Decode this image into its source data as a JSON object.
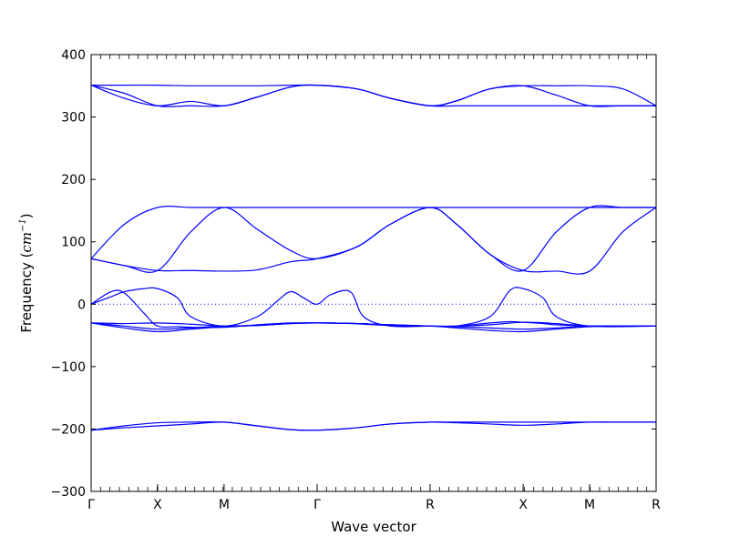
{
  "chart_data": {
    "type": "line",
    "title": "",
    "xlabel": "Wave vector",
    "ylabel": {
      "prefix": "Frequency (",
      "unit_base": "cm",
      "unit_exp": "−1",
      "suffix": ")"
    },
    "ylim": [
      -300,
      400
    ],
    "yticks": [
      -300,
      -200,
      -100,
      0,
      100,
      200,
      300,
      400
    ],
    "ytick_labels": [
      "−300",
      "−200",
      "−100",
      "0",
      "100",
      "200",
      "300",
      "400"
    ],
    "xlim": [
      0,
      8.5
    ],
    "high_symmetry_points": [
      {
        "x": 0.0,
        "label": "Γ"
      },
      {
        "x": 1.0,
        "label": "X"
      },
      {
        "x": 2.0,
        "label": "M"
      },
      {
        "x": 3.4,
        "label": "Γ"
      },
      {
        "x": 5.1,
        "label": "R"
      },
      {
        "x": 6.5,
        "label": "X"
      },
      {
        "x": 7.5,
        "label": "M"
      },
      {
        "x": 8.5,
        "label": "R"
      }
    ],
    "zero_line": {
      "y": 0,
      "style": "dotted"
    },
    "line_color": "#0000ff",
    "series": [
      {
        "x": [
          0,
          0.5,
          1,
          1.5,
          2,
          2.5,
          3,
          3.4,
          4,
          4.5,
          5.1,
          5.5,
          6,
          6.5,
          7,
          7.5,
          8,
          8.5
        ],
        "values": [
          351,
          351,
          351,
          350,
          350,
          350,
          351,
          351,
          345,
          330,
          318,
          326,
          345,
          350,
          350,
          350,
          345,
          318
        ]
      },
      {
        "x": [
          0,
          0.5,
          1,
          1.5,
          2,
          2.5,
          3,
          3.4,
          4,
          4.5,
          5.1,
          5.5,
          6,
          6.5,
          7,
          7.5,
          8,
          8.5
        ],
        "values": [
          351,
          338,
          318,
          318,
          318,
          332,
          348,
          351,
          345,
          330,
          318,
          318,
          318,
          318,
          318,
          318,
          318,
          318
        ]
      },
      {
        "x": [
          0,
          0.5,
          1,
          1.5,
          2,
          2.5,
          3,
          3.4,
          4,
          4.5,
          5.1,
          5.5,
          6,
          6.5,
          7,
          7.5,
          8,
          8.5
        ],
        "values": [
          351,
          330,
          318,
          325,
          318,
          332,
          348,
          351,
          345,
          330,
          318,
          326,
          345,
          350,
          335,
          318,
          318,
          318
        ]
      },
      {
        "x": [
          0,
          0.5,
          1,
          1.5,
          2,
          2.5,
          3,
          3.4,
          4,
          4.5,
          5.1,
          5.5,
          6,
          6.5,
          7,
          7.5,
          8,
          8.5
        ],
        "values": [
          73,
          128,
          155,
          155,
          155,
          155,
          155,
          155,
          155,
          155,
          155,
          155,
          155,
          155,
          155,
          155,
          155,
          155
        ]
      },
      {
        "x": [
          0,
          0.5,
          1,
          1.5,
          2,
          2.5,
          3,
          3.4,
          4,
          4.5,
          5.1,
          5.5,
          6,
          6.5,
          7,
          7.5,
          8,
          8.5
        ],
        "values": [
          73,
          62,
          54,
          116,
          155,
          120,
          86,
          73,
          92,
          128,
          155,
          128,
          80,
          54,
          116,
          155,
          155,
          155
        ]
      },
      {
        "x": [
          0,
          0.5,
          1,
          1.5,
          2,
          2.5,
          3,
          3.4,
          4,
          4.5,
          5.1,
          5.5,
          6,
          6.5,
          7,
          7.5,
          8,
          8.5
        ],
        "values": [
          73,
          62,
          54,
          54,
          53,
          55,
          68,
          73,
          92,
          128,
          155,
          128,
          80,
          54,
          53,
          53,
          116,
          155
        ]
      },
      {
        "x": [
          0,
          0.3,
          0.5,
          0.8,
          1,
          1.3,
          1.5,
          2,
          2.5,
          2.8,
          3.0,
          3.2,
          3.4,
          3.6,
          3.9,
          4.1,
          4.5,
          5.1,
          5.5,
          6.0,
          6.3,
          6.5,
          6.8,
          7.0,
          7.5,
          8.5
        ],
        "values": [
          0,
          12,
          20,
          25,
          25,
          10,
          -20,
          -35,
          -20,
          5,
          20,
          10,
          0,
          15,
          20,
          -20,
          -35,
          -35,
          -35,
          -20,
          22,
          25,
          10,
          -20,
          -35,
          -35
        ]
      },
      {
        "x": [
          0,
          0.3,
          0.5,
          0.8,
          1,
          1.3,
          1.5,
          2,
          2.5,
          2.8,
          3.0,
          3.2,
          3.4,
          3.6,
          3.9,
          4.1,
          4.5,
          5.1,
          5.5,
          6.0,
          6.3,
          6.5,
          6.8,
          7.0,
          7.5,
          8.5
        ],
        "values": [
          0,
          20,
          18,
          -15,
          -35,
          -36,
          -37,
          -37,
          -33,
          -31,
          -30,
          -30,
          -30,
          -30,
          -31,
          -32,
          -34,
          -35,
          -35,
          -30,
          -28,
          -29,
          -31,
          -33,
          -35,
          -35
        ]
      },
      {
        "x": [
          0,
          0.5,
          1,
          1.5,
          2,
          2.5,
          3,
          3.4,
          4,
          4.5,
          5.1,
          5.5,
          6,
          6.5,
          7,
          7.5,
          8,
          8.5
        ],
        "values": [
          -30,
          -31,
          -30,
          -32,
          -35,
          -34,
          -31,
          -30,
          -31,
          -33,
          -35,
          -35,
          -33,
          -29,
          -31,
          -35,
          -35,
          -35
        ]
      },
      {
        "x": [
          0,
          0.5,
          1,
          1.5,
          2,
          2.5,
          3,
          3.4,
          4,
          4.5,
          5.1,
          5.5,
          6,
          6.5,
          7,
          7.5,
          8,
          8.5
        ],
        "values": [
          -30,
          -35,
          -40,
          -38,
          -35,
          -34,
          -31,
          -30,
          -31,
          -33,
          -35,
          -36,
          -38,
          -40,
          -38,
          -35,
          -35,
          -35
        ]
      },
      {
        "x": [
          0,
          0.5,
          1,
          1.5,
          2,
          2.5,
          3,
          3.4,
          4,
          4.5,
          5.1,
          5.5,
          6,
          6.5,
          7,
          7.5,
          8,
          8.5
        ],
        "values": [
          -30,
          -38,
          -44,
          -40,
          -36,
          -34,
          -31,
          -30,
          -31,
          -33,
          -35,
          -38,
          -42,
          -44,
          -40,
          -36,
          -35,
          -35
        ]
      },
      {
        "x": [
          0,
          0.5,
          1,
          1.5,
          2,
          2.5,
          3,
          3.4,
          4,
          4.5,
          5.1,
          5.5,
          6,
          6.5,
          7,
          7.5,
          8,
          8.5
        ],
        "values": [
          -202,
          -195,
          -190,
          -189,
          -189,
          -195,
          -201,
          -202,
          -198,
          -192,
          -189,
          -189,
          -189,
          -189,
          -189,
          -189,
          -189,
          -189
        ]
      },
      {
        "x": [
          0,
          0.5,
          1,
          1.5,
          2,
          2.5,
          3,
          3.4,
          4,
          4.5,
          5.1,
          5.5,
          6,
          6.5,
          7,
          7.5,
          8,
          8.5
        ],
        "values": [
          -202,
          -198,
          -195,
          -192,
          -189,
          -195,
          -201,
          -202,
          -198,
          -192,
          -189,
          -190,
          -192,
          -194,
          -192,
          -189,
          -189,
          -189
        ]
      }
    ]
  }
}
